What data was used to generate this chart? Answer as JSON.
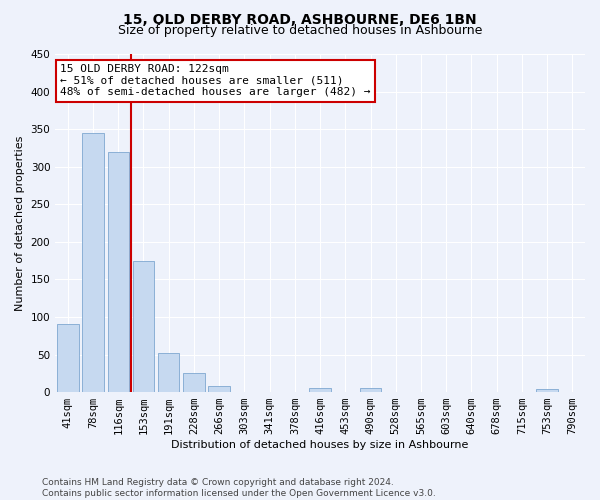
{
  "title": "15, OLD DERBY ROAD, ASHBOURNE, DE6 1BN",
  "subtitle": "Size of property relative to detached houses in Ashbourne",
  "xlabel": "Distribution of detached houses by size in Ashbourne",
  "ylabel": "Number of detached properties",
  "bar_labels": [
    "41sqm",
    "78sqm",
    "116sqm",
    "153sqm",
    "191sqm",
    "228sqm",
    "266sqm",
    "303sqm",
    "341sqm",
    "378sqm",
    "416sqm",
    "453sqm",
    "490sqm",
    "528sqm",
    "565sqm",
    "603sqm",
    "640sqm",
    "678sqm",
    "715sqm",
    "753sqm",
    "790sqm"
  ],
  "bar_values": [
    90,
    345,
    320,
    175,
    52,
    25,
    8,
    0,
    0,
    0,
    5,
    0,
    5,
    0,
    0,
    0,
    0,
    0,
    0,
    4,
    0
  ],
  "bar_color": "#c6d9f0",
  "bar_edge_color": "#7fa8d0",
  "vline_x": 2.5,
  "vline_color": "#cc0000",
  "annotation_line1": "15 OLD DERBY ROAD: 122sqm",
  "annotation_line2": "← 51% of detached houses are smaller (511)",
  "annotation_line3": "48% of semi-detached houses are larger (482) →",
  "annotation_box_color": "#ffffff",
  "annotation_box_edge": "#cc0000",
  "ylim": [
    0,
    450
  ],
  "yticks": [
    0,
    50,
    100,
    150,
    200,
    250,
    300,
    350,
    400,
    450
  ],
  "background_color": "#eef2fb",
  "grid_color": "#ffffff",
  "footer": "Contains HM Land Registry data © Crown copyright and database right 2024.\nContains public sector information licensed under the Open Government Licence v3.0.",
  "title_fontsize": 10,
  "subtitle_fontsize": 9,
  "axis_label_fontsize": 8,
  "tick_fontsize": 7.5,
  "annotation_fontsize": 8,
  "footer_fontsize": 6.5
}
